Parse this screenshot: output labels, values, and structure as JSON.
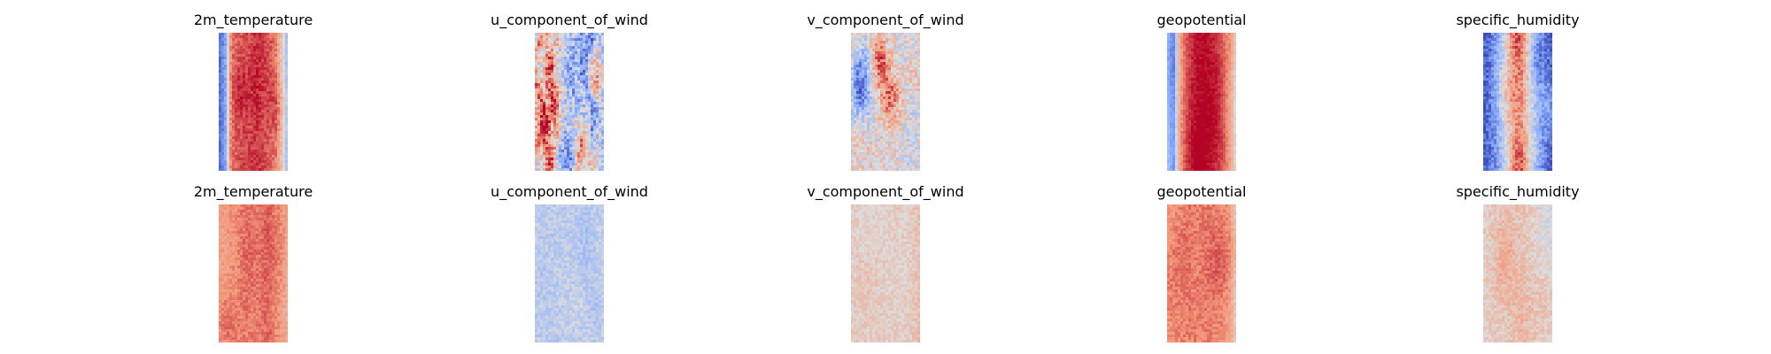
{
  "chart_data": [
    {
      "type": "heatmap",
      "title": "2m_temperature",
      "colormap": "coolwarm",
      "row": 1,
      "field": {
        "base": 0.55,
        "profile": [
          0.08,
          0.2,
          0.82,
          0.86,
          0.9,
          0.92,
          0.94,
          0.9,
          0.86,
          0.82,
          0.6,
          0.3
        ],
        "noise": 0.06,
        "blobs": 0.1,
        "streaks": 0.0
      }
    },
    {
      "type": "heatmap",
      "title": "u_component_of_wind",
      "colormap": "coolwarm",
      "row": 1,
      "field": {
        "base": 0.42,
        "profile": [
          0.45,
          0.42,
          0.4,
          0.42,
          0.38,
          0.4,
          0.42,
          0.4,
          0.38,
          0.4,
          0.42,
          0.35
        ],
        "noise": 0.18,
        "blobs": 0.35,
        "streaks": 0.28
      }
    },
    {
      "type": "heatmap",
      "title": "v_component_of_wind",
      "colormap": "coolwarm",
      "row": 1,
      "field": {
        "base": 0.5,
        "profile": [
          0.5,
          0.5,
          0.5,
          0.5,
          0.5,
          0.5,
          0.5,
          0.5,
          0.5,
          0.5,
          0.5,
          0.5
        ],
        "noise": 0.14,
        "blobs": 0.4,
        "streaks": 0.05
      }
    },
    {
      "type": "heatmap",
      "title": "geopotential",
      "colormap": "coolwarm",
      "row": 1,
      "field": {
        "base": 0.6,
        "profile": [
          0.35,
          0.18,
          0.72,
          0.86,
          0.94,
          0.98,
          0.98,
          0.94,
          0.88,
          0.8,
          0.7,
          0.5
        ],
        "noise": 0.04,
        "blobs": 0.08,
        "streaks": 0.0
      }
    },
    {
      "type": "heatmap",
      "title": "specific_humidity",
      "colormap": "coolwarm",
      "row": 1,
      "field": {
        "base": 0.25,
        "profile": [
          0.05,
          0.1,
          0.2,
          0.35,
          0.55,
          0.7,
          0.72,
          0.55,
          0.35,
          0.2,
          0.1,
          0.05
        ],
        "noise": 0.1,
        "blobs": 0.18,
        "streaks": 0.0
      }
    },
    {
      "type": "heatmap",
      "title": "2m_temperature",
      "colormap": "coolwarm",
      "row": 2,
      "field": {
        "base": 0.78,
        "profile": [
          0.72,
          0.74,
          0.76,
          0.78,
          0.8,
          0.8,
          0.8,
          0.82,
          0.84,
          0.8,
          0.76,
          0.7
        ],
        "noise": 0.05,
        "blobs": 0.06,
        "streaks": 0.0
      }
    },
    {
      "type": "heatmap",
      "title": "u_component_of_wind",
      "colormap": "coolwarm",
      "row": 2,
      "field": {
        "base": 0.4,
        "profile": [
          0.42,
          0.4,
          0.4,
          0.39,
          0.4,
          0.41,
          0.4,
          0.4,
          0.39,
          0.4,
          0.4,
          0.41
        ],
        "noise": 0.07,
        "blobs": 0.05,
        "streaks": 0.0
      }
    },
    {
      "type": "heatmap",
      "title": "v_component_of_wind",
      "colormap": "coolwarm",
      "row": 2,
      "field": {
        "base": 0.56,
        "profile": [
          0.56,
          0.57,
          0.56,
          0.56,
          0.57,
          0.56,
          0.56,
          0.57,
          0.56,
          0.56,
          0.58,
          0.62
        ],
        "noise": 0.06,
        "blobs": 0.04,
        "streaks": 0.0
      }
    },
    {
      "type": "heatmap",
      "title": "geopotential",
      "colormap": "coolwarm",
      "row": 2,
      "field": {
        "base": 0.76,
        "profile": [
          0.74,
          0.76,
          0.78,
          0.8,
          0.8,
          0.8,
          0.8,
          0.8,
          0.78,
          0.76,
          0.7,
          0.55
        ],
        "noise": 0.05,
        "blobs": 0.06,
        "streaks": 0.0
      }
    },
    {
      "type": "heatmap",
      "title": "specific_humidity",
      "colormap": "coolwarm",
      "row": 2,
      "field": {
        "base": 0.55,
        "profile": [
          0.55,
          0.56,
          0.57,
          0.56,
          0.58,
          0.6,
          0.62,
          0.6,
          0.58,
          0.56,
          0.54,
          0.52
        ],
        "noise": 0.07,
        "blobs": 0.12,
        "streaks": 0.0
      }
    }
  ]
}
